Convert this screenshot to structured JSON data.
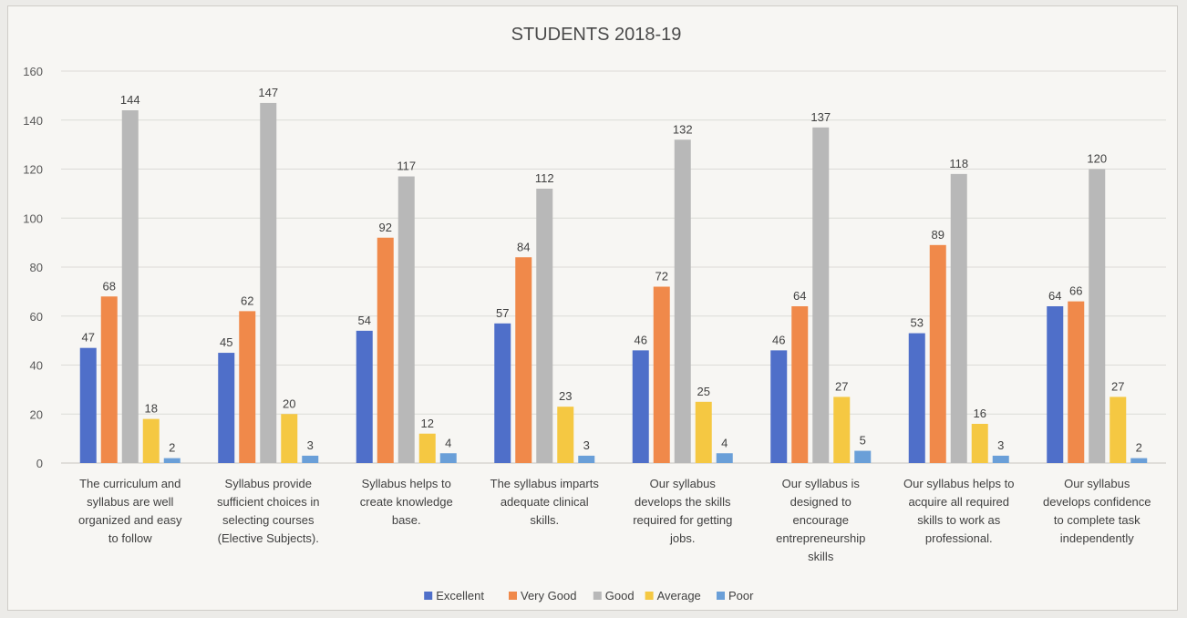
{
  "chart_data": {
    "type": "bar",
    "title": "STUDENTS 2018-19",
    "xlabel": "",
    "ylabel": "",
    "ylim": [
      0,
      160
    ],
    "yticks": [
      0,
      20,
      40,
      60,
      80,
      100,
      120,
      140,
      160
    ],
    "grid": true,
    "legend_position": "bottom",
    "categories": [
      [
        "The curriculum and",
        "syllabus are well",
        "organized and easy",
        "to follow"
      ],
      [
        "Syllabus provide",
        "sufficient choices in",
        "selecting courses",
        "(Elective Subjects)."
      ],
      [
        "Syllabus helps to",
        "create knowledge",
        "base."
      ],
      [
        "The syllabus imparts",
        "adequate clinical",
        "skills."
      ],
      [
        "Our syllabus",
        "develops the skills",
        "required for getting",
        "jobs."
      ],
      [
        "Our syllabus is",
        "designed to",
        "encourage",
        "entrepreneurship",
        "skills"
      ],
      [
        "Our syllabus helps to",
        "acquire all required",
        "skills to work as",
        "professional."
      ],
      [
        "Our syllabus",
        "develops confidence",
        "to complete task",
        "independently"
      ]
    ],
    "series": [
      {
        "name": "Excellent",
        "color": "#4f6fc9",
        "values": [
          47,
          45,
          54,
          57,
          46,
          46,
          53,
          64
        ]
      },
      {
        "name": "Very Good",
        "color": "#f0894a",
        "values": [
          68,
          62,
          92,
          84,
          72,
          64,
          89,
          66
        ]
      },
      {
        "name": "Good",
        "color": "#b8b8b8",
        "values": [
          144,
          147,
          117,
          112,
          132,
          137,
          118,
          120
        ]
      },
      {
        "name": "Average",
        "color": "#f5c842",
        "values": [
          18,
          20,
          12,
          23,
          25,
          27,
          16,
          27
        ]
      },
      {
        "name": "Poor",
        "color": "#6a9fd8",
        "values": [
          2,
          3,
          4,
          3,
          4,
          5,
          3,
          2
        ]
      }
    ]
  }
}
